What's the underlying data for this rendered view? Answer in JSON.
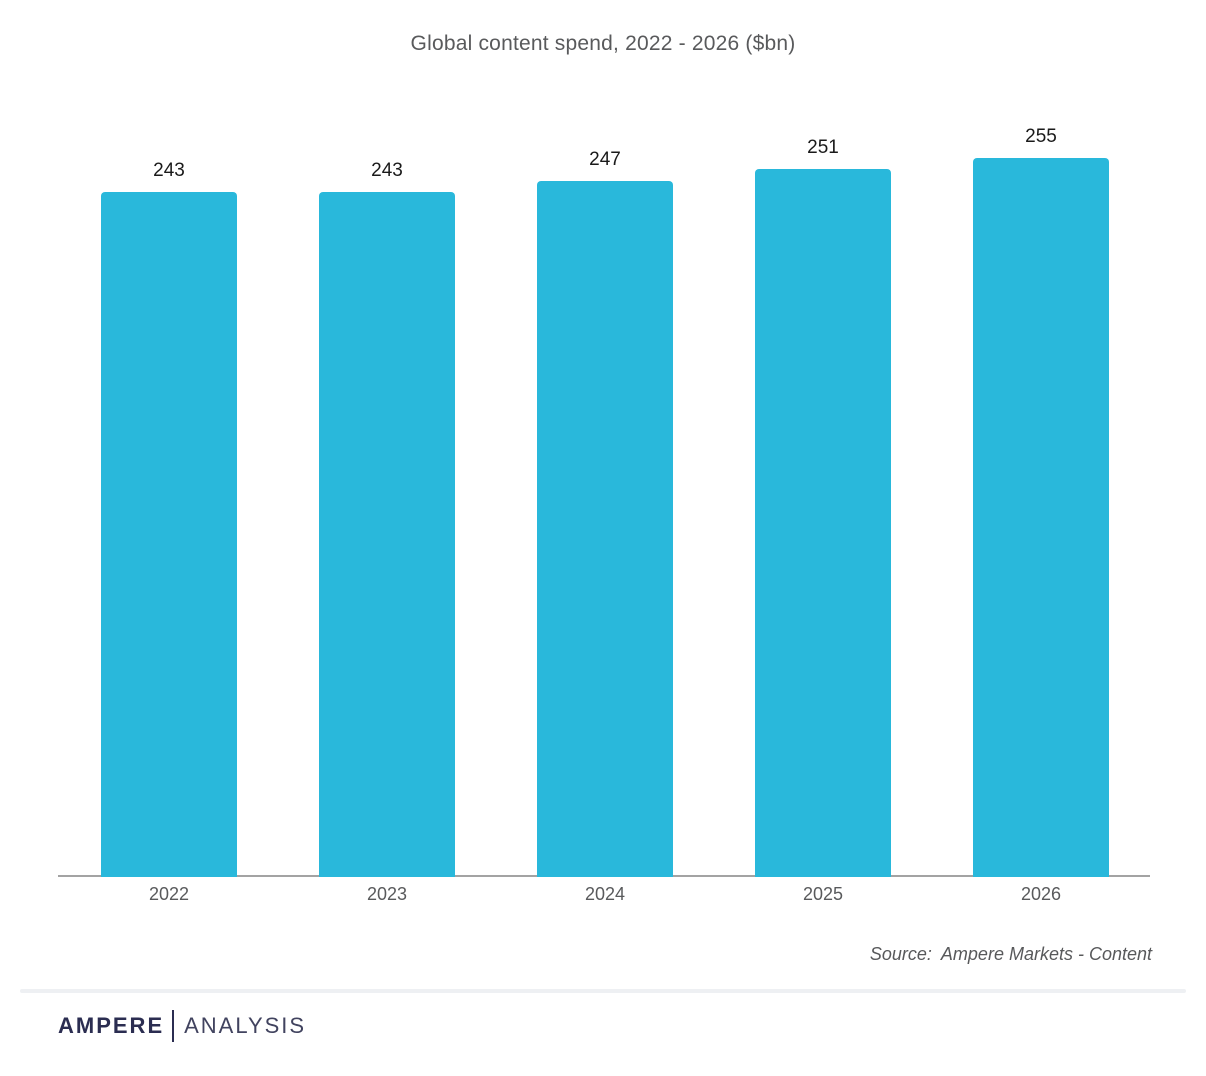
{
  "chart_data": {
    "type": "bar",
    "title": "Global content spend, 2022 - 2026 ($bn)",
    "categories": [
      "2022",
      "2023",
      "2024",
      "2025",
      "2026"
    ],
    "values": [
      243,
      243,
      247,
      251,
      255
    ],
    "xlabel": "",
    "ylabel": "",
    "ylim": [
      0,
      260
    ],
    "grid": false,
    "legend_position": "none",
    "bar_color": "#29B8DB",
    "value_label_color": "#1a1a1a",
    "axis_line_color": "#a3a3a3",
    "tick_label_color": "#595a5c",
    "title_color": "#595a5c"
  },
  "source": {
    "prefix": "Source:",
    "text": "Ampere Markets - Content"
  },
  "footer": {
    "brand_primary": "AMPERE",
    "brand_secondary": "ANALYSIS",
    "brand_color": "#2b2d51"
  }
}
